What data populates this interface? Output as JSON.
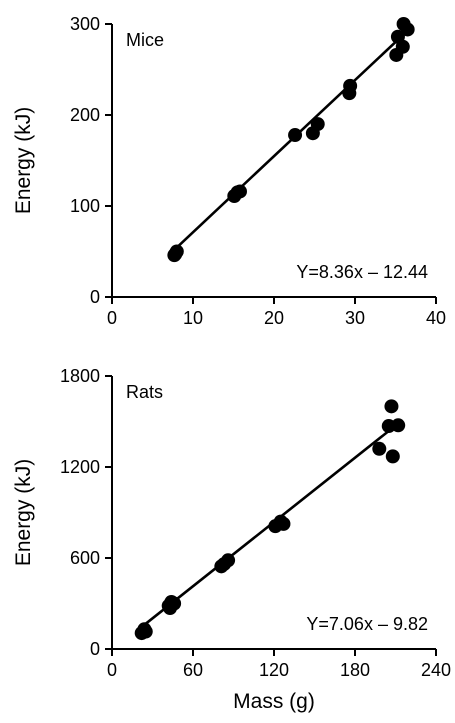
{
  "chart_data": [
    {
      "type": "scatter",
      "panel_label": "Mice",
      "ylabel": "Energy (kJ)",
      "xlabel": "",
      "xlim": [
        0,
        40
      ],
      "ylim": [
        0,
        300
      ],
      "xticks": [
        0,
        10,
        20,
        30,
        40
      ],
      "yticks": [
        0,
        100,
        200,
        300
      ],
      "equation": "Y=8.36x – 12.44",
      "fit": {
        "slope": 8.36,
        "intercept": -12.44,
        "x_range": [
          7.5,
          36.5
        ]
      },
      "series": [
        {
          "points": [
            {
              "x": 7.8,
              "y": 47
            },
            {
              "x": 8.0,
              "y": 50
            },
            {
              "x": 7.7,
              "y": 46
            },
            {
              "x": 15.1,
              "y": 111
            },
            {
              "x": 15.5,
              "y": 115
            },
            {
              "x": 15.8,
              "y": 116
            },
            {
              "x": 22.6,
              "y": 178
            },
            {
              "x": 24.8,
              "y": 180
            },
            {
              "x": 25.4,
              "y": 190
            },
            {
              "x": 29.3,
              "y": 224
            },
            {
              "x": 29.4,
              "y": 232
            },
            {
              "x": 35.1,
              "y": 266
            },
            {
              "x": 35.3,
              "y": 286
            },
            {
              "x": 35.9,
              "y": 275
            },
            {
              "x": 36.0,
              "y": 300
            },
            {
              "x": 36.5,
              "y": 294
            }
          ]
        }
      ]
    },
    {
      "type": "scatter",
      "panel_label": "Rats",
      "ylabel": "Energy (kJ)",
      "xlabel": "Mass (g)",
      "xlim": [
        0,
        240
      ],
      "ylim": [
        0,
        1800
      ],
      "xticks": [
        0,
        60,
        120,
        180,
        240
      ],
      "yticks": [
        0,
        600,
        1200,
        1800
      ],
      "equation": "Y=7.06x – 9.82",
      "fit": {
        "slope": 7.06,
        "intercept": -9.82,
        "x_range": [
          20,
          212
        ]
      },
      "series": [
        {
          "points": [
            {
              "x": 22,
              "y": 105
            },
            {
              "x": 24,
              "y": 130
            },
            {
              "x": 25,
              "y": 115
            },
            {
              "x": 42,
              "y": 285
            },
            {
              "x": 44,
              "y": 310
            },
            {
              "x": 46,
              "y": 300
            },
            {
              "x": 43,
              "y": 270
            },
            {
              "x": 81,
              "y": 545
            },
            {
              "x": 83,
              "y": 560
            },
            {
              "x": 86,
              "y": 585
            },
            {
              "x": 121,
              "y": 810
            },
            {
              "x": 125,
              "y": 840
            },
            {
              "x": 127,
              "y": 825
            },
            {
              "x": 198,
              "y": 1320
            },
            {
              "x": 205,
              "y": 1470
            },
            {
              "x": 207,
              "y": 1600
            },
            {
              "x": 208,
              "y": 1270
            },
            {
              "x": 212,
              "y": 1475
            }
          ]
        }
      ]
    }
  ]
}
